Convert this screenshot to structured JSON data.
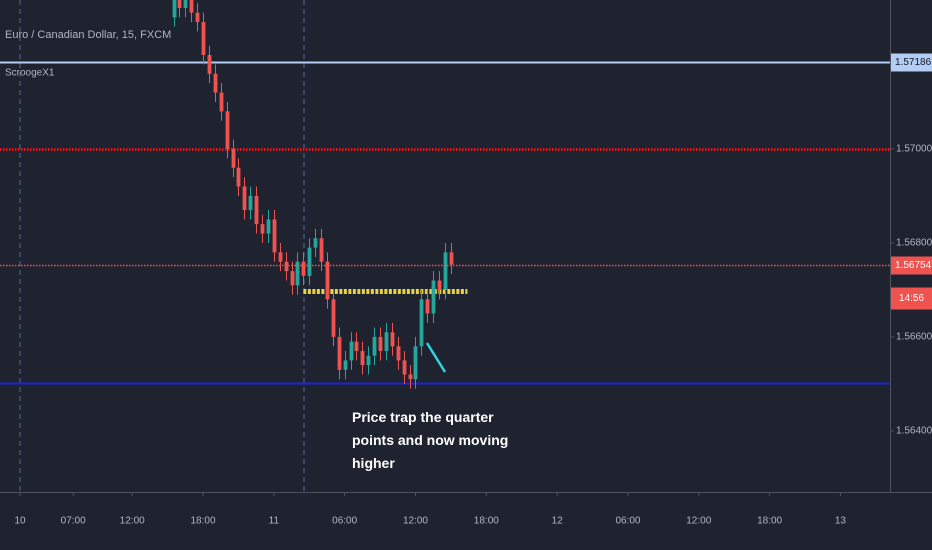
{
  "chart_data": {
    "type": "candlestick",
    "title": "Euro / Canadian Dollar, 15, FXCM",
    "subtitle": "ScroogeX1",
    "annotation": "Price trap the quarter points and now moving higher",
    "up_color": "#26a69a",
    "down_color": "#ef5350",
    "x": [
      15.5,
      16,
      16.5,
      17,
      17.5,
      18,
      18.5,
      19,
      19.5,
      20,
      20.5,
      21,
      21.5,
      22,
      22.5,
      23,
      23.5,
      24,
      24.5,
      25,
      25.5,
      26,
      26.5,
      27,
      27.5,
      28,
      28.5,
      29,
      29.5,
      30,
      30.5,
      31,
      31.5,
      32,
      32.5,
      33,
      33.5,
      34,
      34.5,
      35,
      35.5,
      36,
      36.5,
      37,
      37.5,
      38,
      38.5,
      39
    ],
    "open": [
      1.5728,
      1.5732,
      1.573,
      1.5733,
      1.5729,
      1.5727,
      1.572,
      1.5716,
      1.5712,
      1.5708,
      1.57,
      1.5696,
      1.5692,
      1.5687,
      1.569,
      1.5684,
      1.5682,
      1.5685,
      1.5678,
      1.5676,
      1.5674,
      1.5671,
      1.5676,
      1.5673,
      1.5679,
      1.5681,
      1.5676,
      1.5668,
      1.566,
      1.5653,
      1.5655,
      1.5659,
      1.5657,
      1.5654,
      1.5656,
      1.566,
      1.5657,
      1.5661,
      1.5658,
      1.5655,
      1.5652,
      1.5651,
      1.5658,
      1.5668,
      1.5665,
      1.5672,
      1.567,
      1.5678
    ],
    "high": [
      1.5734,
      1.5734,
      1.5735,
      1.5735,
      1.5731,
      1.5729,
      1.5722,
      1.5718,
      1.5714,
      1.571,
      1.5702,
      1.5698,
      1.5694,
      1.5692,
      1.5692,
      1.5686,
      1.5687,
      1.5687,
      1.568,
      1.5678,
      1.5676,
      1.5678,
      1.5678,
      1.5681,
      1.5683,
      1.5683,
      1.5678,
      1.567,
      1.5662,
      1.5657,
      1.5661,
      1.5661,
      1.5659,
      1.5658,
      1.5662,
      1.5662,
      1.5663,
      1.5663,
      1.566,
      1.5657,
      1.5654,
      1.566,
      1.567,
      1.567,
      1.5674,
      1.5674,
      1.568,
      1.568
    ],
    "low": [
      1.5726,
      1.5728,
      1.5728,
      1.5727,
      1.5725,
      1.5718,
      1.5714,
      1.571,
      1.5706,
      1.5698,
      1.5694,
      1.569,
      1.5685,
      1.5685,
      1.5682,
      1.568,
      1.568,
      1.5676,
      1.5674,
      1.5672,
      1.5669,
      1.5669,
      1.5671,
      1.5671,
      1.5677,
      1.5674,
      1.5666,
      1.5658,
      1.5651,
      1.5651,
      1.5653,
      1.5655,
      1.5652,
      1.5652,
      1.5654,
      1.5655,
      1.5655,
      1.5656,
      1.5653,
      1.565,
      1.5649,
      1.5649,
      1.5656,
      1.5663,
      1.5663,
      1.5668,
      1.5668,
      1.56734
    ],
    "close": [
      1.5732,
      1.573,
      1.5733,
      1.5729,
      1.5727,
      1.572,
      1.5716,
      1.5712,
      1.5708,
      1.57,
      1.5696,
      1.5692,
      1.5687,
      1.569,
      1.5684,
      1.5682,
      1.5685,
      1.5678,
      1.5676,
      1.5674,
      1.5671,
      1.5676,
      1.5673,
      1.5679,
      1.5681,
      1.5676,
      1.5668,
      1.566,
      1.5653,
      1.5655,
      1.5659,
      1.5657,
      1.5654,
      1.5656,
      1.566,
      1.5657,
      1.5661,
      1.5658,
      1.5655,
      1.5652,
      1.5651,
      1.5658,
      1.5668,
      1.5665,
      1.5672,
      1.567,
      1.5678,
      1.56754
    ],
    "xlim": [
      0.8,
      76.2
    ],
    "xticks": [
      {
        "value": 2.5,
        "label": "10"
      },
      {
        "value": 7,
        "label": "07:00"
      },
      {
        "value": 12,
        "label": "12:00"
      },
      {
        "value": 18,
        "label": "18:00"
      },
      {
        "value": 24,
        "label": "11"
      },
      {
        "value": 30,
        "label": "06:00"
      },
      {
        "value": 36,
        "label": "12:00"
      },
      {
        "value": 42,
        "label": "18:00"
      },
      {
        "value": 48,
        "label": "12"
      },
      {
        "value": 54,
        "label": "06:00"
      },
      {
        "value": 60,
        "label": "12:00"
      },
      {
        "value": 66,
        "label": "18:00"
      },
      {
        "value": 72,
        "label": "13"
      }
    ],
    "ylim": [
      1.5627,
      1.57317
    ],
    "yticks": [
      {
        "value": 1.564,
        "label": "1.56400"
      },
      {
        "value": 1.566,
        "label": "1.56600"
      },
      {
        "value": 1.568,
        "label": "1.56800"
      },
      {
        "value": 1.57,
        "label": "1.57000"
      }
    ],
    "levels": [
      {
        "value": 1.57186,
        "color": "#b3cdf5",
        "style": "solid",
        "tag": true
      },
      {
        "value": 1.57,
        "color": "#e0191c",
        "style": "dotted",
        "tag": false
      },
      {
        "value": 1.56502,
        "color": "#1a23d6",
        "style": "solid",
        "tag": false
      }
    ],
    "zone": {
      "value": 1.56698,
      "from": 26.5,
      "to": 40.4,
      "color": "#e8d442"
    },
    "last_price": 1.56754,
    "last_color": "#ef5350",
    "countdown": "14:56"
  }
}
